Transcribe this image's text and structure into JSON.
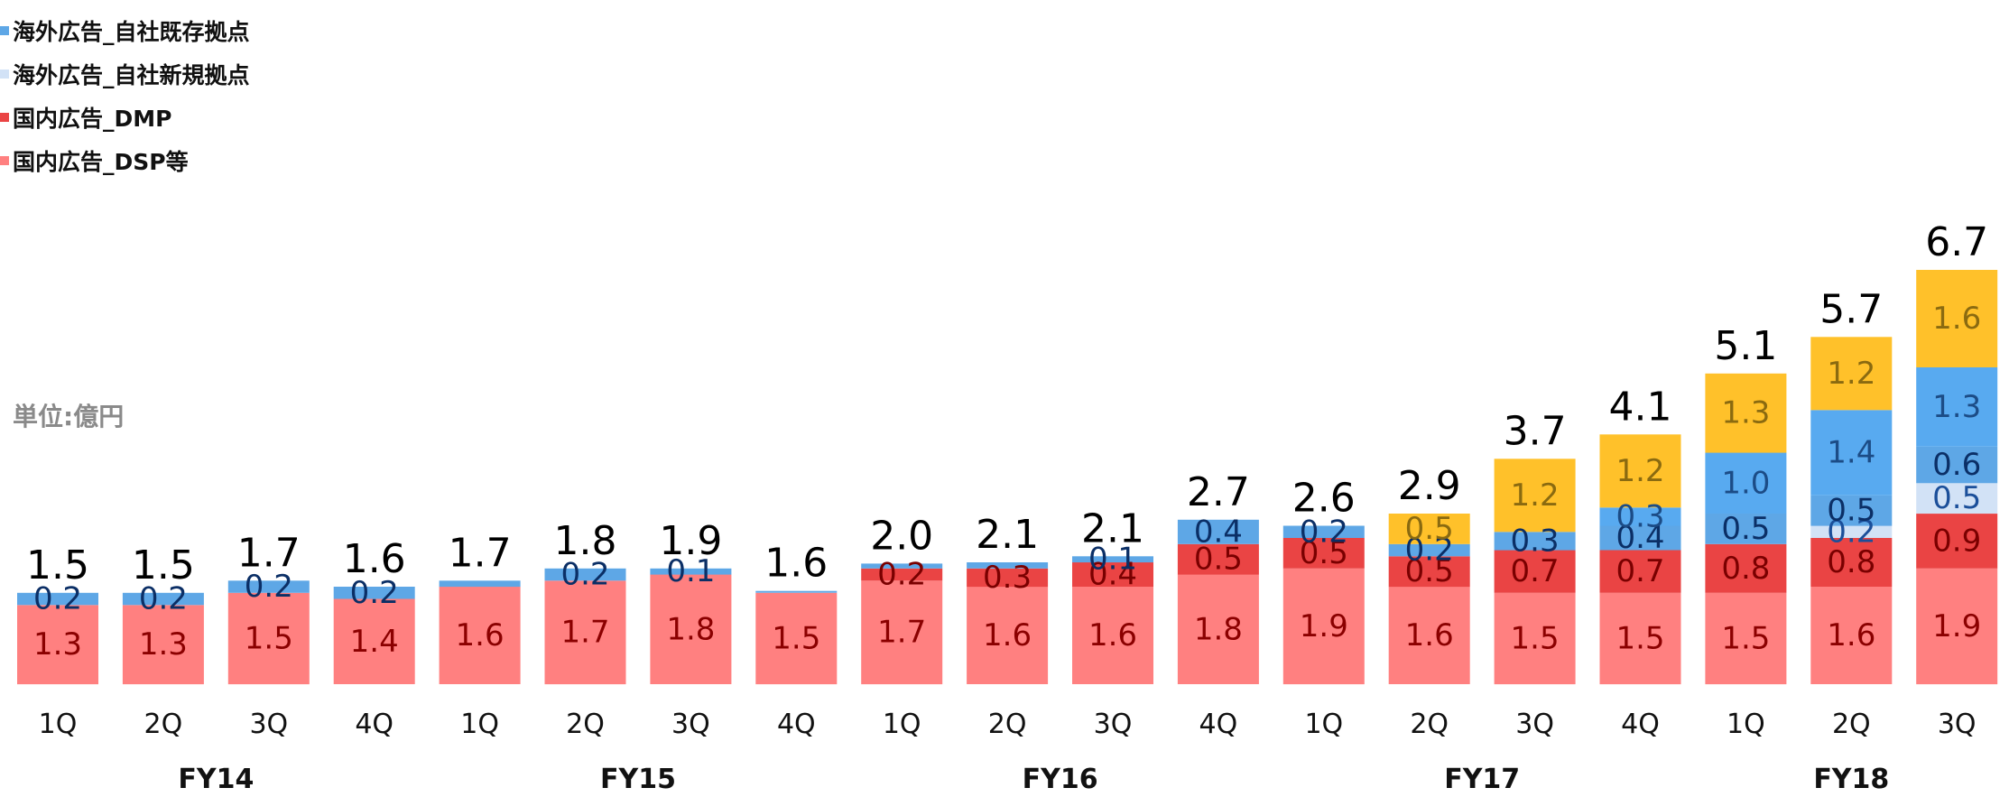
{
  "chart_data": {
    "type": "bar",
    "stacked": true,
    "unit_label": "単位:億円",
    "quarters": [
      "1Q",
      "2Q",
      "3Q",
      "4Q",
      "1Q",
      "2Q",
      "3Q",
      "4Q",
      "1Q",
      "2Q",
      "3Q",
      "4Q",
      "1Q",
      "2Q",
      "3Q",
      "4Q",
      "1Q",
      "2Q",
      "3Q"
    ],
    "fiscal_years": [
      {
        "label": "FY14",
        "start": 0,
        "end": 3
      },
      {
        "label": "FY15",
        "start": 4,
        "end": 7
      },
      {
        "label": "FY16",
        "start": 8,
        "end": 11
      },
      {
        "label": "FY17",
        "start": 12,
        "end": 15
      },
      {
        "label": "FY18",
        "start": 16,
        "end": 18
      }
    ],
    "totals": [
      "1.5",
      "1.5",
      "1.7",
      "1.6",
      "1.7",
      "1.8",
      "1.9",
      "1.6",
      "2.0",
      "2.1",
      "2.1",
      "2.7",
      "2.6",
      "2.9",
      "3.7",
      "4.1",
      "5.1",
      "5.7",
      "6.7"
    ],
    "series": [
      {
        "name": "国内広告_DSP等",
        "key": "dsp",
        "color": "#ff8080",
        "label_color": "#8b0000",
        "values": [
          1.3,
          1.3,
          1.5,
          1.4,
          1.6,
          1.7,
          1.8,
          1.5,
          1.7,
          1.6,
          1.6,
          1.8,
          1.9,
          1.6,
          1.5,
          1.5,
          1.5,
          1.6,
          1.9
        ],
        "labels": [
          "1.3",
          "1.3",
          "1.5",
          "1.4",
          "1.6",
          "1.7",
          "1.8",
          "1.5",
          "1.7",
          "1.6",
          "1.6",
          "1.8",
          "1.9",
          "1.6",
          "1.5",
          "1.5",
          "1.5",
          "1.6",
          "1.9"
        ]
      },
      {
        "name": "国内広告_DMP",
        "key": "dmp",
        "color": "#ea4444",
        "label_color": "#7a0000",
        "values": [
          0,
          0,
          0,
          0,
          0,
          0,
          0,
          0,
          0.2,
          0.3,
          0.4,
          0.5,
          0.5,
          0.5,
          0.7,
          0.7,
          0.8,
          0.8,
          0.9
        ],
        "labels": [
          null,
          null,
          null,
          null,
          null,
          null,
          null,
          null,
          "0.2",
          "0.3",
          "0.4",
          "0.5",
          "0.5",
          "0.5",
          "0.7",
          "0.7",
          "0.8",
          "0.8",
          "0.9"
        ]
      },
      {
        "name": "海外広告_自社新規拠点",
        "key": "new",
        "color": "#d2e2f6",
        "label_color": "#1b4f9a",
        "values": [
          0,
          0,
          0,
          0,
          0,
          0,
          0,
          0,
          0,
          0,
          0,
          0,
          0,
          0,
          0,
          0,
          0,
          0.2,
          0.5
        ],
        "labels": [
          null,
          null,
          null,
          null,
          null,
          null,
          null,
          null,
          null,
          null,
          null,
          null,
          null,
          null,
          null,
          null,
          null,
          "0.2",
          "0.5"
        ]
      },
      {
        "name": "海外広告_自社既存拠点",
        "key": "existing",
        "color": "#5ea7e6",
        "label_color": "#0b2f66",
        "values": [
          0.2,
          0.2,
          0.2,
          0.2,
          0.1,
          0.2,
          0.1,
          0.03,
          0.08,
          0.1,
          0.1,
          0.4,
          0.2,
          0.2,
          0.3,
          0.4,
          0.5,
          0.5,
          0.6
        ],
        "labels": [
          "0.2",
          "0.2",
          "0.2",
          "0.2",
          null,
          "0.2",
          "0.1",
          null,
          null,
          null,
          "0.1",
          "0.4",
          "0.2",
          "0.2",
          "0.3",
          "0.4",
          "0.5",
          "0.5",
          "0.6"
        ]
      },
      {
        "name": "",
        "key": "extra_blue",
        "color": "#58aaf0",
        "label_color": "#1c4c86",
        "values": [
          0,
          0,
          0,
          0,
          0,
          0,
          0,
          0,
          0,
          0,
          0,
          0,
          0,
          0,
          0,
          0.3,
          1.0,
          1.4,
          1.3
        ],
        "labels": [
          null,
          null,
          null,
          null,
          null,
          null,
          null,
          null,
          null,
          null,
          null,
          null,
          null,
          null,
          null,
          "0.3",
          "1.0",
          "1.4",
          "1.3"
        ]
      },
      {
        "name": "",
        "key": "yellow",
        "color": "#ffc12a",
        "label_color": "#8a6a10",
        "values": [
          0,
          0,
          0,
          0,
          0,
          0,
          0,
          0,
          0,
          0,
          0,
          0,
          0,
          0.5,
          1.2,
          1.2,
          1.3,
          1.2,
          1.6
        ],
        "labels": [
          null,
          null,
          null,
          null,
          null,
          null,
          null,
          null,
          null,
          null,
          null,
          null,
          null,
          "0.5",
          "1.2",
          "1.2",
          "1.3",
          "1.2",
          "1.6"
        ]
      }
    ],
    "legend_order": [
      "existing",
      "new",
      "dmp",
      "dsp"
    ],
    "ylim": [
      0,
      6.8
    ],
    "grid": false
  }
}
